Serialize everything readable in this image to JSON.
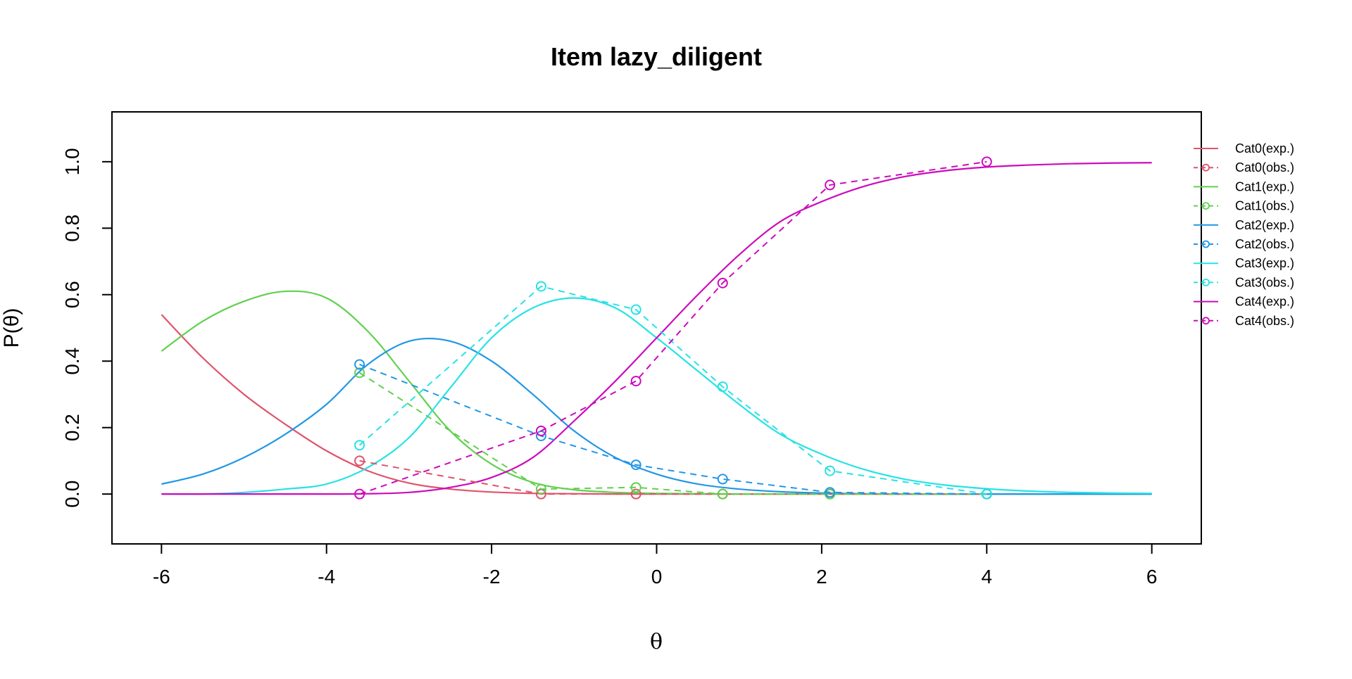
{
  "chart_data": {
    "type": "line",
    "title": "Item lazy_diligent",
    "xlabel": "θ",
    "ylabel": "P(θ)",
    "xlim": [
      -6.6,
      6.6
    ],
    "ylim": [
      -0.15,
      1.15
    ],
    "xticks": [
      "-6",
      "-4",
      "-2",
      "0",
      "2",
      "4",
      "6"
    ],
    "yticks": [
      "0.0",
      "0.2",
      "0.4",
      "0.6",
      "0.8",
      "1.0"
    ],
    "legend_position": "right",
    "grid": false,
    "expected_curves": {
      "x": [
        -6,
        -5.5,
        -5,
        -4.5,
        -4,
        -3.5,
        -3,
        -2.5,
        -2,
        -1.5,
        -1,
        -0.5,
        0,
        0.5,
        1,
        1.5,
        2,
        2.5,
        3,
        3.5,
        4,
        4.5,
        5,
        5.5,
        6
      ],
      "series": [
        {
          "name": "Cat0(exp.)",
          "color": "#df536b",
          "dash": "solid",
          "values": [
            0.54,
            0.41,
            0.3,
            0.21,
            0.13,
            0.07,
            0.033,
            0.015,
            0.006,
            0.002,
            0.001,
            0,
            0,
            0,
            0,
            0,
            0,
            0,
            0,
            0,
            0,
            0,
            0,
            0,
            0
          ]
        },
        {
          "name": "Cat1(exp.)",
          "color": "#61d04f",
          "dash": "solid",
          "values": [
            0.43,
            0.52,
            0.58,
            0.61,
            0.59,
            0.49,
            0.34,
            0.19,
            0.09,
            0.035,
            0.013,
            0.005,
            0.002,
            0.001,
            0,
            0,
            0,
            0,
            0,
            0,
            0,
            0,
            0,
            0,
            0
          ]
        },
        {
          "name": "Cat2(exp.)",
          "color": "#2297e6",
          "dash": "solid",
          "values": [
            0.03,
            0.06,
            0.11,
            0.18,
            0.27,
            0.39,
            0.46,
            0.46,
            0.4,
            0.3,
            0.19,
            0.11,
            0.06,
            0.03,
            0.015,
            0.007,
            0.003,
            0.001,
            0,
            0,
            0,
            0,
            0,
            0,
            0
          ]
        },
        {
          "name": "Cat3(exp.)",
          "color": "#28e2e5",
          "dash": "solid",
          "values": [
            0,
            0,
            0.005,
            0.015,
            0.03,
            0.08,
            0.17,
            0.32,
            0.47,
            0.56,
            0.59,
            0.56,
            0.47,
            0.37,
            0.27,
            0.18,
            0.12,
            0.075,
            0.045,
            0.027,
            0.016,
            0.009,
            0.005,
            0.003,
            0.002
          ]
        },
        {
          "name": "Cat4(exp.)",
          "color": "#cd0bbc",
          "dash": "solid",
          "values": [
            0,
            0,
            0,
            0,
            0,
            0.001,
            0.005,
            0.02,
            0.05,
            0.11,
            0.22,
            0.34,
            0.47,
            0.6,
            0.72,
            0.82,
            0.88,
            0.925,
            0.955,
            0.973,
            0.984,
            0.99,
            0.994,
            0.996,
            0.997
          ]
        }
      ]
    },
    "observed_points": {
      "x": [
        -3.6,
        -1.4,
        -0.25,
        0.8,
        2.1,
        4.0
      ],
      "series": [
        {
          "name": "Cat0(obs.)",
          "color": "#df536b",
          "dash": "dashed",
          "values": [
            0.1,
            0.0,
            0.0,
            0.0,
            0.0,
            0.0
          ]
        },
        {
          "name": "Cat1(obs.)",
          "color": "#61d04f",
          "dash": "dashed",
          "values": [
            0.365,
            0.015,
            0.02,
            0.0,
            0.0,
            0.0
          ]
        },
        {
          "name": "Cat2(obs.)",
          "color": "#2297e6",
          "dash": "dashed",
          "values": [
            0.39,
            0.175,
            0.088,
            0.045,
            0.005,
            0.0
          ]
        },
        {
          "name": "Cat3(obs.)",
          "color": "#28e2e5",
          "dash": "dashed",
          "values": [
            0.147,
            0.625,
            0.555,
            0.323,
            0.07,
            0.0
          ]
        },
        {
          "name": "Cat4(obs.)",
          "color": "#cd0bbc",
          "dash": "dashed",
          "values": [
            0.0,
            0.19,
            0.34,
            0.635,
            0.93,
            1.0
          ]
        }
      ]
    },
    "legend": [
      {
        "label": "Cat0(exp.)",
        "color": "#df536b",
        "dash": "solid",
        "marker": false
      },
      {
        "label": "Cat0(obs.)",
        "color": "#df536b",
        "dash": "dashed",
        "marker": true
      },
      {
        "label": "Cat1(exp.)",
        "color": "#61d04f",
        "dash": "solid",
        "marker": false
      },
      {
        "label": "Cat1(obs.)",
        "color": "#61d04f",
        "dash": "dashed",
        "marker": true
      },
      {
        "label": "Cat2(exp.)",
        "color": "#2297e6",
        "dash": "solid",
        "marker": false
      },
      {
        "label": "Cat2(obs.)",
        "color": "#2297e6",
        "dash": "dashed",
        "marker": true
      },
      {
        "label": "Cat3(exp.)",
        "color": "#28e2e5",
        "dash": "solid",
        "marker": false
      },
      {
        "label": "Cat3(obs.)",
        "color": "#28e2e5",
        "dash": "dashed",
        "marker": true
      },
      {
        "label": "Cat4(exp.)",
        "color": "#cd0bbc",
        "dash": "solid",
        "marker": false
      },
      {
        "label": "Cat4(obs.)",
        "color": "#cd0bbc",
        "dash": "dashed",
        "marker": true
      }
    ]
  }
}
